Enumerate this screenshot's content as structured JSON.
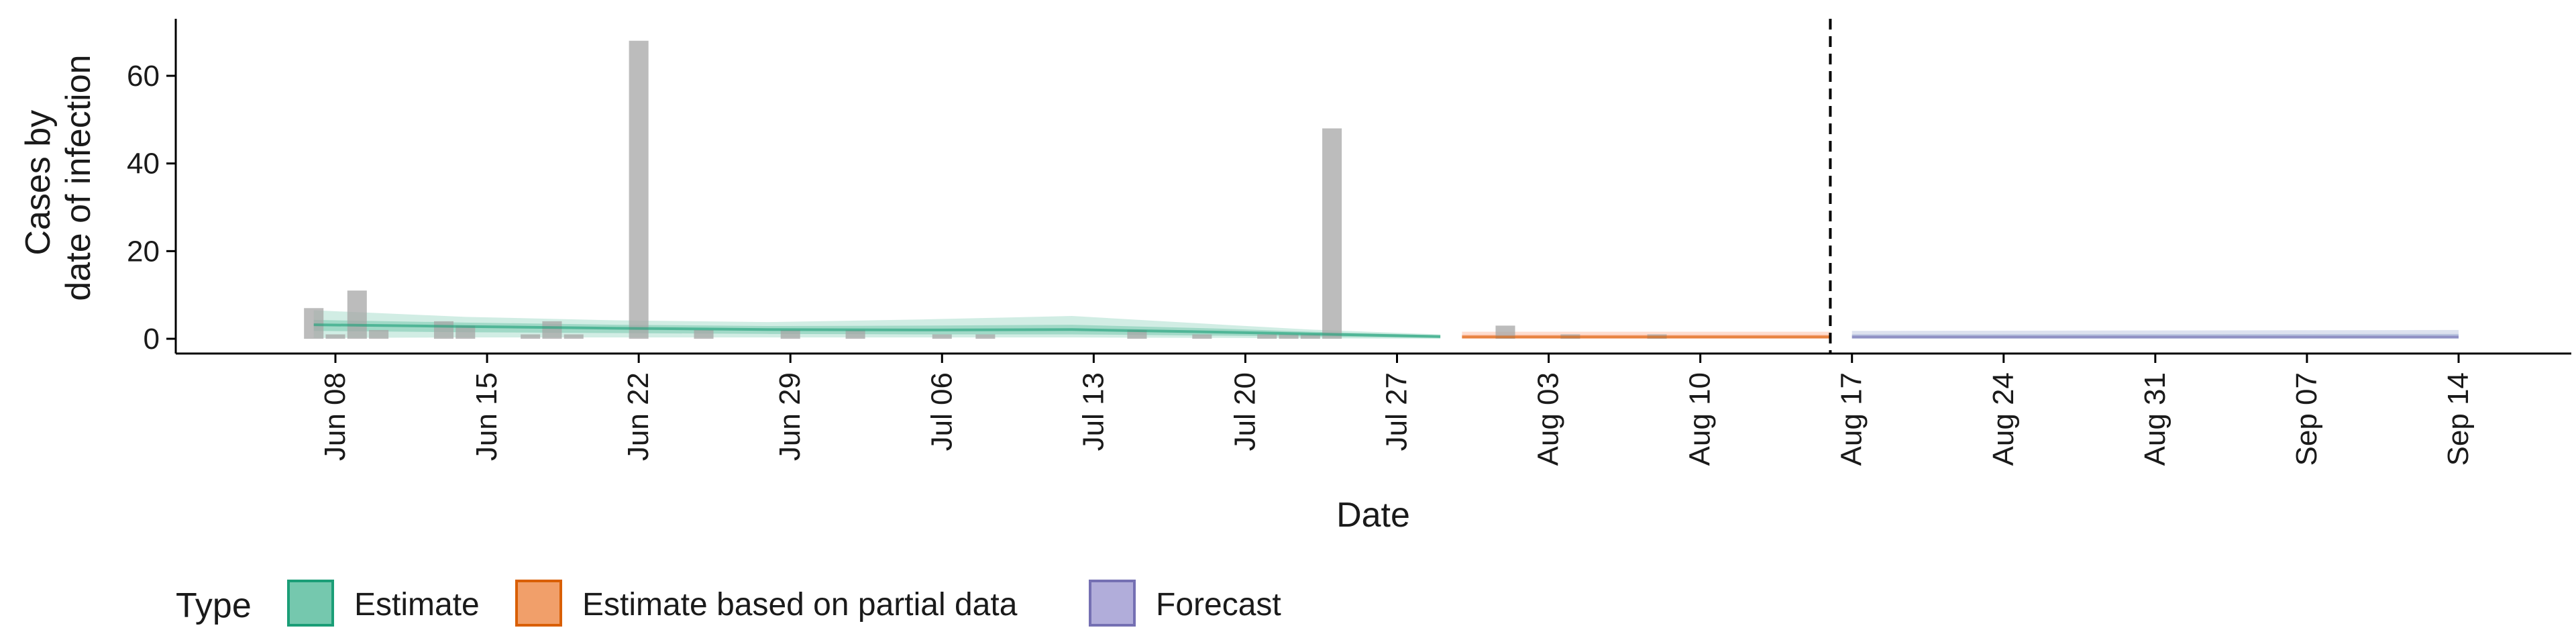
{
  "chart_data": {
    "type": "bar",
    "title": "",
    "xlabel": "Date",
    "ylabel": [
      "Cases by",
      "date of infection"
    ],
    "ylim": [
      0,
      72
    ],
    "yticks": [
      0,
      20,
      40,
      60
    ],
    "xlim": [
      "2020-06-04",
      "2020-09-21"
    ],
    "x_ticks": [
      {
        "date": "2020-06-08",
        "label": "Jun 08"
      },
      {
        "date": "2020-06-15",
        "label": "Jun 15"
      },
      {
        "date": "2020-06-22",
        "label": "Jun 22"
      },
      {
        "date": "2020-06-29",
        "label": "Jun 29"
      },
      {
        "date": "2020-07-06",
        "label": "Jul 06"
      },
      {
        "date": "2020-07-13",
        "label": "Jul 13"
      },
      {
        "date": "2020-07-20",
        "label": "Jul 20"
      },
      {
        "date": "2020-07-27",
        "label": "Jul 27"
      },
      {
        "date": "2020-08-03",
        "label": "Aug 03"
      },
      {
        "date": "2020-08-10",
        "label": "Aug 10"
      },
      {
        "date": "2020-08-17",
        "label": "Aug 17"
      },
      {
        "date": "2020-08-24",
        "label": "Aug 24"
      },
      {
        "date": "2020-08-31",
        "label": "Aug 31"
      },
      {
        "date": "2020-09-07",
        "label": "Sep 07"
      },
      {
        "date": "2020-09-14",
        "label": "Sep 14"
      }
    ],
    "reported_cases": [
      {
        "date": "2020-06-07",
        "value": 7
      },
      {
        "date": "2020-06-08",
        "value": 1
      },
      {
        "date": "2020-06-09",
        "value": 11
      },
      {
        "date": "2020-06-10",
        "value": 2
      },
      {
        "date": "2020-06-13",
        "value": 4
      },
      {
        "date": "2020-06-14",
        "value": 3
      },
      {
        "date": "2020-06-17",
        "value": 1
      },
      {
        "date": "2020-06-18",
        "value": 4
      },
      {
        "date": "2020-06-19",
        "value": 1
      },
      {
        "date": "2020-06-22",
        "value": 68
      },
      {
        "date": "2020-06-25",
        "value": 2
      },
      {
        "date": "2020-06-29",
        "value": 2
      },
      {
        "date": "2020-07-02",
        "value": 2
      },
      {
        "date": "2020-07-06",
        "value": 1
      },
      {
        "date": "2020-07-08",
        "value": 1
      },
      {
        "date": "2020-07-15",
        "value": 2
      },
      {
        "date": "2020-07-18",
        "value": 1
      },
      {
        "date": "2020-07-21",
        "value": 1
      },
      {
        "date": "2020-07-22",
        "value": 1
      },
      {
        "date": "2020-07-23",
        "value": 1
      },
      {
        "date": "2020-07-24",
        "value": 48
      },
      {
        "date": "2020-08-01",
        "value": 3
      },
      {
        "date": "2020-08-04",
        "value": 1
      },
      {
        "date": "2020-08-08",
        "value": 1
      }
    ],
    "forecast_start_line": "2020-08-16",
    "series": [
      {
        "name": "Estimate",
        "color": "#1b9e77",
        "fill": "#66c2a5",
        "median": [
          {
            "date": "2020-06-07",
            "value": 3.2
          },
          {
            "date": "2020-06-14",
            "value": 2.8
          },
          {
            "date": "2020-06-21",
            "value": 2.4
          },
          {
            "date": "2020-06-28",
            "value": 2.1
          },
          {
            "date": "2020-07-05",
            "value": 2.0
          },
          {
            "date": "2020-07-12",
            "value": 2.1
          },
          {
            "date": "2020-07-19",
            "value": 1.5
          },
          {
            "date": "2020-07-23",
            "value": 1.1
          },
          {
            "date": "2020-07-29",
            "value": 0.5
          }
        ],
        "band_outer": [
          {
            "date": "2020-06-07",
            "lower": 0.2,
            "upper": 6.5
          },
          {
            "date": "2020-06-14",
            "lower": 0.3,
            "upper": 5.0
          },
          {
            "date": "2020-06-21",
            "lower": 0.3,
            "upper": 4.2
          },
          {
            "date": "2020-06-28",
            "lower": 0.3,
            "upper": 3.8
          },
          {
            "date": "2020-07-05",
            "lower": 0.3,
            "upper": 4.4
          },
          {
            "date": "2020-07-12",
            "lower": 0.3,
            "upper": 5.2
          },
          {
            "date": "2020-07-19",
            "lower": 0.2,
            "upper": 3.2
          },
          {
            "date": "2020-07-23",
            "lower": 0.1,
            "upper": 2.1
          },
          {
            "date": "2020-07-29",
            "lower": 0.0,
            "upper": 1.0
          }
        ],
        "band_inner": [
          {
            "date": "2020-06-07",
            "lower": 1.8,
            "upper": 4.3
          },
          {
            "date": "2020-06-14",
            "lower": 1.5,
            "upper": 3.7
          },
          {
            "date": "2020-06-21",
            "lower": 1.3,
            "upper": 3.2
          },
          {
            "date": "2020-06-28",
            "lower": 1.1,
            "upper": 2.9
          },
          {
            "date": "2020-07-05",
            "lower": 1.0,
            "upper": 3.0
          },
          {
            "date": "2020-07-12",
            "lower": 1.0,
            "upper": 3.2
          },
          {
            "date": "2020-07-19",
            "lower": 0.7,
            "upper": 2.3
          },
          {
            "date": "2020-07-23",
            "lower": 0.5,
            "upper": 1.6
          },
          {
            "date": "2020-07-29",
            "lower": 0.2,
            "upper": 0.8
          }
        ]
      },
      {
        "name": "Estimate based on partial data",
        "color": "#d95f02",
        "fill": "#fc8d62",
        "median": [
          {
            "date": "2020-07-30",
            "value": 0.4
          },
          {
            "date": "2020-08-16",
            "value": 0.4
          }
        ],
        "band_outer": [
          {
            "date": "2020-07-30",
            "lower": 0.0,
            "upper": 1.6
          },
          {
            "date": "2020-08-16",
            "lower": 0.0,
            "upper": 1.6
          }
        ],
        "band_inner": [
          {
            "date": "2020-07-30",
            "lower": 0.1,
            "upper": 0.9
          },
          {
            "date": "2020-08-16",
            "lower": 0.1,
            "upper": 0.9
          }
        ]
      },
      {
        "name": "Forecast",
        "color": "#7570b3",
        "fill": "#8da0cb",
        "median": [
          {
            "date": "2020-08-17",
            "value": 0.4
          },
          {
            "date": "2020-09-14",
            "value": 0.4
          }
        ],
        "band_outer": [
          {
            "date": "2020-08-17",
            "lower": 0.0,
            "upper": 1.8
          },
          {
            "date": "2020-09-14",
            "lower": 0.0,
            "upper": 2.0
          }
        ],
        "band_inner": [
          {
            "date": "2020-08-17",
            "lower": 0.1,
            "upper": 1.0
          },
          {
            "date": "2020-09-14",
            "lower": 0.1,
            "upper": 1.1
          }
        ]
      }
    ],
    "legend": {
      "title": "Type",
      "placement": "bottom",
      "items": [
        {
          "label": "Estimate",
          "fill": "#66c2a5",
          "border": "#1b9e77"
        },
        {
          "label": "Estimate based on partial data",
          "fill": "#ef955a",
          "border": "#d95f02"
        },
        {
          "label": "Forecast",
          "fill": "#a9a4d6",
          "border": "#7570b3"
        }
      ]
    },
    "grid": false
  }
}
